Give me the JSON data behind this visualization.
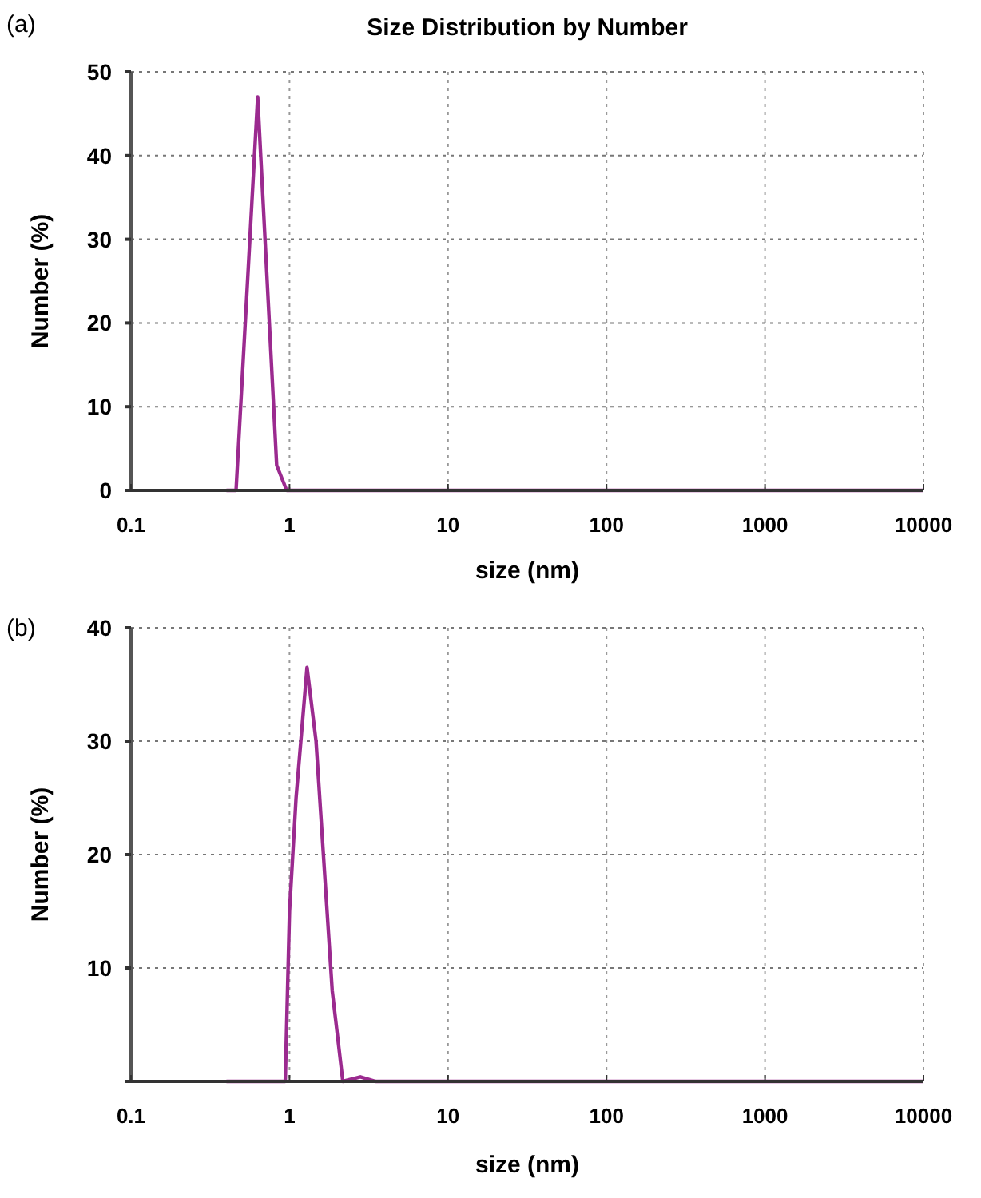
{
  "chart_data": [
    {
      "type": "line",
      "title": "Size Distribution by Number",
      "xlabel": "size (nm)",
      "ylabel": "Number (%)",
      "annotations": [
        "(a)"
      ],
      "log": "x",
      "grid": true,
      "marker": "none",
      "line_style": "solid",
      "xlim": [
        0.1,
        10000
      ],
      "xticks": [
        0.1,
        1,
        10,
        100,
        1000,
        10000
      ],
      "ylim": [
        0,
        50
      ],
      "yticks": [
        0,
        10,
        20,
        30,
        40,
        50
      ],
      "series": [
        {
          "color": "#9b2a8f",
          "x": [
            0.4,
            0.46,
            0.63,
            0.83,
            0.96,
            1,
            10,
            100,
            1000,
            10000
          ],
          "values": [
            0,
            0,
            47,
            3,
            0,
            0,
            0,
            0,
            0,
            0
          ]
        }
      ]
    },
    {
      "type": "line",
      "xlabel": "size (nm)",
      "ylabel": "Number (%)",
      "annotations": [
        "(b)"
      ],
      "log": "x",
      "grid": true,
      "marker": "none",
      "line_style": "solid",
      "xlim": [
        0.1,
        10000
      ],
      "xticks": [
        0.1,
        1,
        10,
        100,
        1000,
        10000
      ],
      "ylim": [
        0,
        40
      ],
      "yticks": [
        {
          "value": 0,
          "label": null
        },
        10,
        20,
        30,
        40
      ],
      "series": [
        {
          "color": "#9b2a8f",
          "x": [
            0.4,
            0.94,
            1.0,
            1.1,
            1.29,
            1.47,
            1.86,
            2.17,
            2.8,
            3.5,
            10,
            100,
            1000,
            10000
          ],
          "values": [
            0,
            0,
            15,
            25,
            36.5,
            30,
            8,
            0,
            0.4,
            0,
            0,
            0,
            0,
            0
          ]
        }
      ]
    }
  ]
}
